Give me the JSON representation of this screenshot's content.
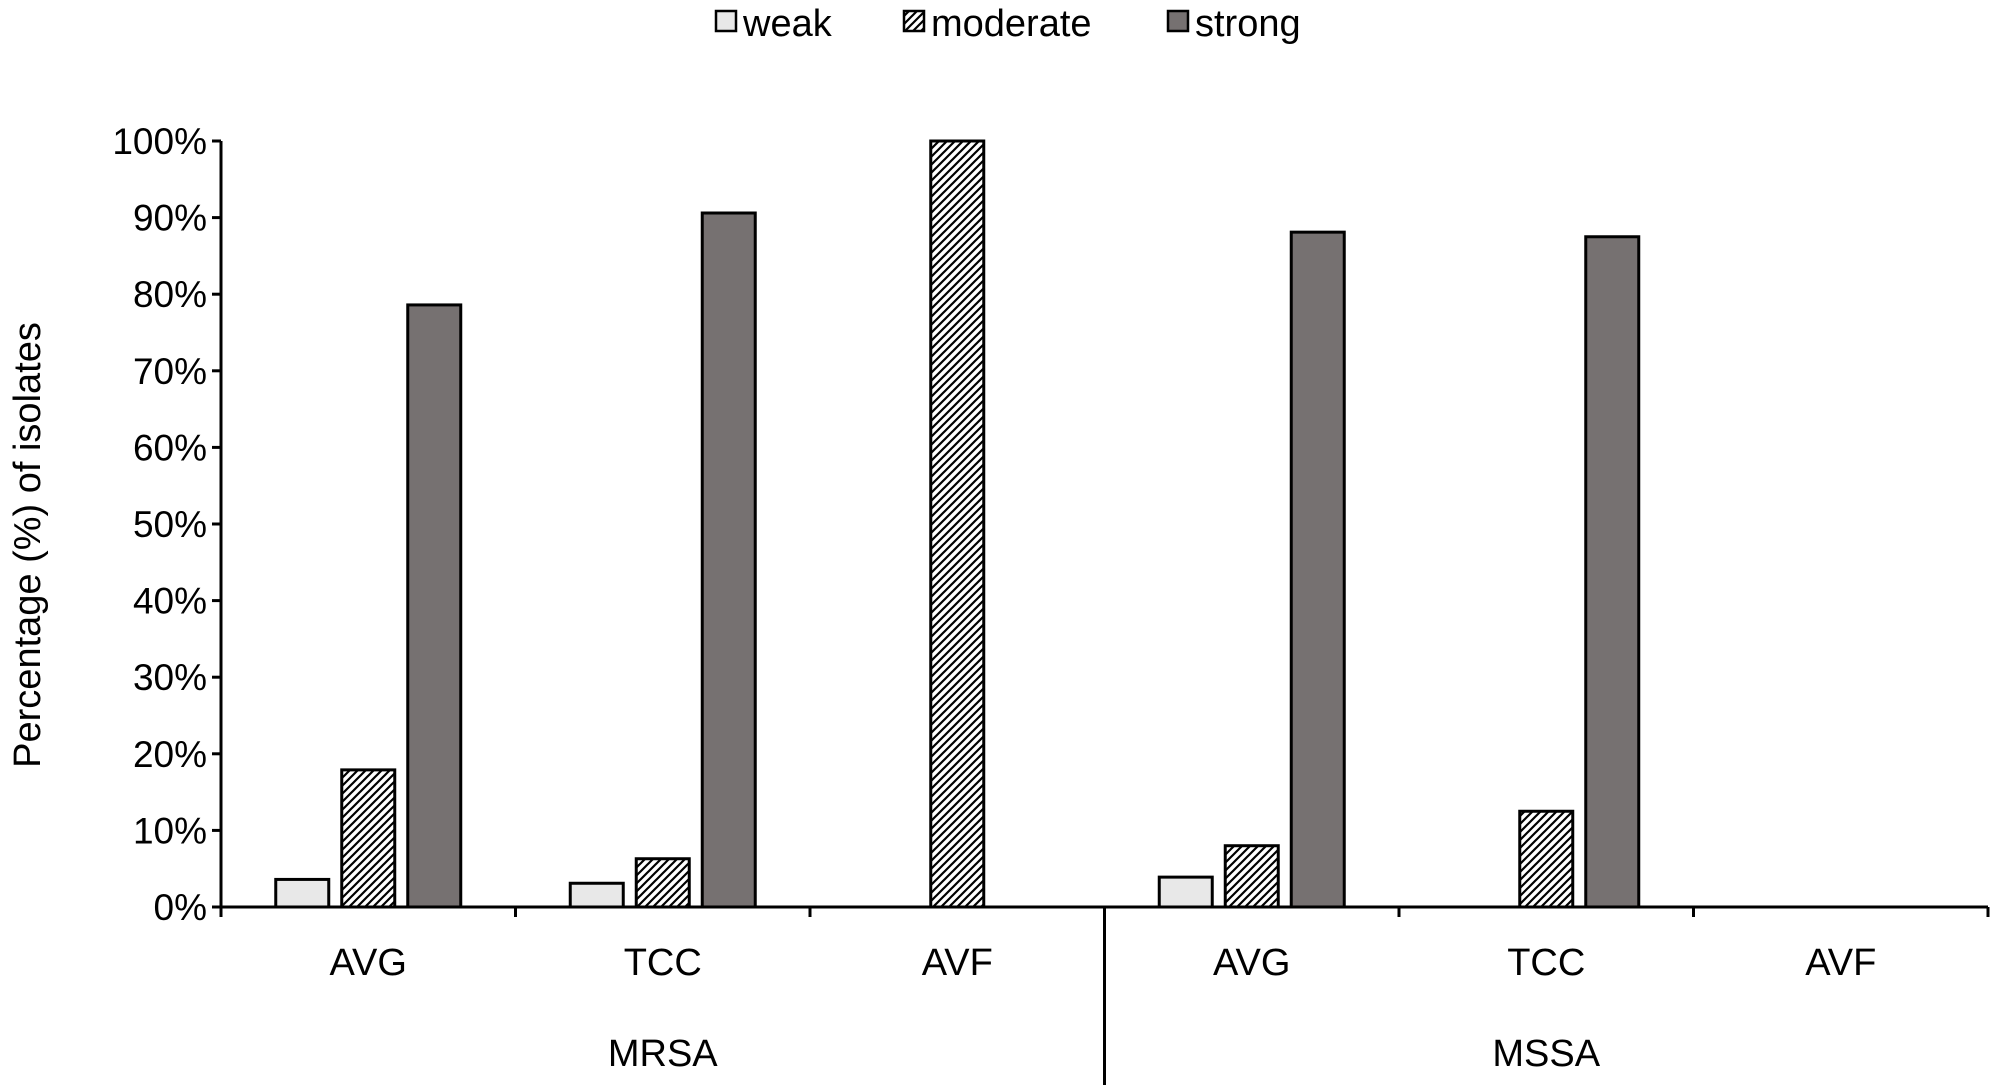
{
  "chart_data": {
    "type": "bar",
    "title": "",
    "xlabel": "",
    "ylabel": "Percentage (%) of isolates",
    "ylim": [
      0,
      100
    ],
    "yticks": [
      "0%",
      "10%",
      "20%",
      "30%",
      "40%",
      "50%",
      "60%",
      "70%",
      "80%",
      "90%",
      "100%"
    ],
    "legend_position": "top-center",
    "groups": [
      {
        "label": "MRSA",
        "categories": [
          "AVG",
          "TCC",
          "AVF"
        ]
      },
      {
        "label": "MSSA",
        "categories": [
          "AVG",
          "TCC",
          "AVF"
        ]
      }
    ],
    "series": [
      {
        "name": "weak",
        "color": "#e8e8e8",
        "pattern": "solid",
        "values": [
          3.6,
          3.1,
          0,
          3.9,
          0,
          0
        ]
      },
      {
        "name": "moderate",
        "color": "#ffffff",
        "pattern": "hatched",
        "values": [
          17.9,
          6.3,
          100,
          8.0,
          12.5,
          0
        ]
      },
      {
        "name": "strong",
        "color": "#767171",
        "pattern": "solid",
        "values": [
          78.6,
          90.6,
          0,
          88.1,
          87.5,
          0
        ]
      }
    ]
  }
}
